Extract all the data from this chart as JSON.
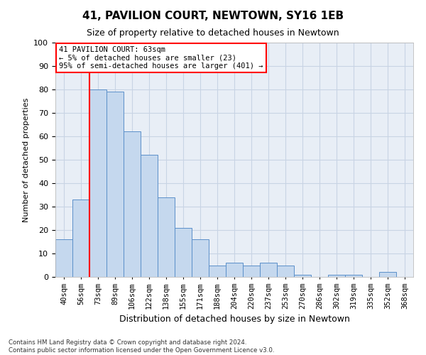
{
  "title": "41, PAVILION COURT, NEWTOWN, SY16 1EB",
  "subtitle": "Size of property relative to detached houses in Newtown",
  "xlabel": "Distribution of detached houses by size in Newtown",
  "ylabel": "Number of detached properties",
  "categories": [
    "40sqm",
    "56sqm",
    "73sqm",
    "89sqm",
    "106sqm",
    "122sqm",
    "138sqm",
    "155sqm",
    "171sqm",
    "188sqm",
    "204sqm",
    "220sqm",
    "237sqm",
    "253sqm",
    "270sqm",
    "286sqm",
    "302sqm",
    "319sqm",
    "335sqm",
    "352sqm",
    "368sqm"
  ],
  "values": [
    16,
    33,
    80,
    79,
    62,
    52,
    34,
    21,
    16,
    5,
    6,
    5,
    6,
    5,
    1,
    0,
    1,
    1,
    0,
    2,
    0
  ],
  "bar_color": "#c5d8ee",
  "bar_edge_color": "#5b8fc9",
  "grid_color": "#c8d4e4",
  "background_color": "#e8eef6",
  "annotation_box_text": "41 PAVILION COURT: 63sqm\n← 5% of detached houses are smaller (23)\n95% of semi-detached houses are larger (401) →",
  "annotation_box_color": "red",
  "annotation_box_fill": "white",
  "redline_x": 1.5,
  "ylim": [
    0,
    100
  ],
  "yticks": [
    0,
    10,
    20,
    30,
    40,
    50,
    60,
    70,
    80,
    90,
    100
  ],
  "footnote": "Contains HM Land Registry data © Crown copyright and database right 2024.\nContains public sector information licensed under the Open Government Licence v3.0."
}
